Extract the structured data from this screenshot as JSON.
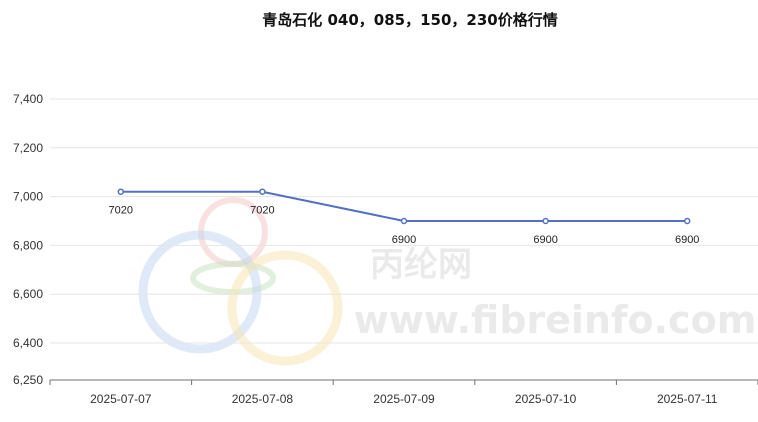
{
  "watermark": {
    "cn": "丙纶网",
    "url": "www.fibreinfo.com"
  },
  "colors": {
    "line": "#5470c6",
    "grid": "#e6e6e6",
    "axis": "#6e7079"
  },
  "chart_data": {
    "type": "line",
    "title": "青岛石化 040，085，150，230价格行情",
    "categories": [
      "2025-07-07",
      "2025-07-08",
      "2025-07-09",
      "2025-07-10",
      "2025-07-11"
    ],
    "series": [
      {
        "values": [
          7020,
          7020,
          6900,
          6900,
          6900
        ]
      }
    ],
    "ylim": [
      6250,
      7500
    ],
    "yticks": [
      6250,
      6400,
      6600,
      6800,
      7000,
      7200,
      7400
    ],
    "ytick_labels": [
      "6,250",
      "6,400",
      "6,600",
      "6,800",
      "7,000",
      "7,200",
      "7,400"
    ],
    "data_labels": [
      "7020",
      "7020",
      "6900",
      "6900",
      "6900"
    ],
    "grid": true,
    "legend": "none"
  }
}
